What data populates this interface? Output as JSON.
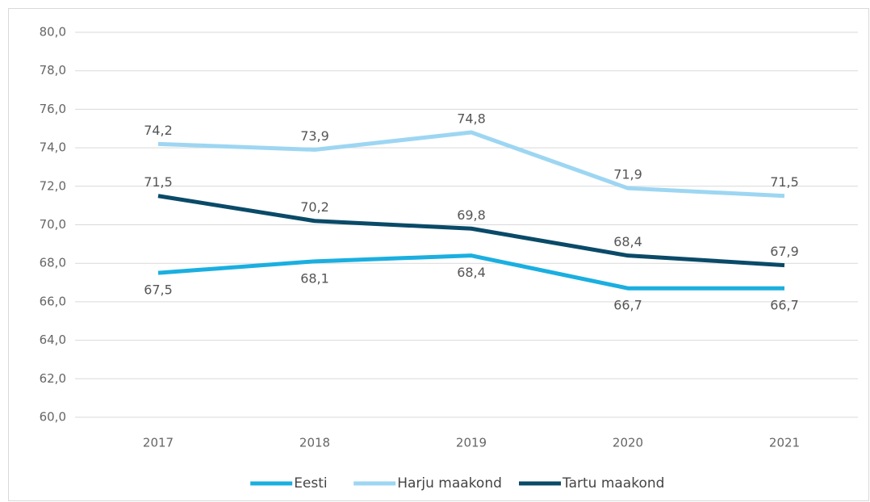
{
  "chart_data": {
    "type": "line",
    "categories": [
      "2017",
      "2018",
      "2019",
      "2020",
      "2021"
    ],
    "series": [
      {
        "name": "Eesti",
        "color": "#1aafe0",
        "values": [
          67.5,
          68.1,
          68.4,
          66.7,
          66.7
        ],
        "value_labels": [
          "67,5",
          "68,1",
          "68,4",
          "66,7",
          "66,7"
        ]
      },
      {
        "name": "Harju maakond",
        "color": "#9dd6f2",
        "values": [
          74.2,
          73.9,
          74.8,
          71.9,
          71.5
        ],
        "value_labels": [
          "74,2",
          "73,9",
          "74,8",
          "71,9",
          "71,5"
        ]
      },
      {
        "name": "Tartu maakond",
        "color": "#0a4a68",
        "values": [
          71.5,
          70.2,
          69.8,
          68.4,
          67.9
        ],
        "value_labels": [
          "71,5",
          "70,2",
          "69,8",
          "68,4",
          "67,9"
        ]
      }
    ],
    "ylim": [
      60,
      80
    ],
    "yticks": [
      {
        "value": 60,
        "label": "60,0"
      },
      {
        "value": 62,
        "label": "62,0"
      },
      {
        "value": 64,
        "label": "64,0"
      },
      {
        "value": 66,
        "label": "66,0"
      },
      {
        "value": 68,
        "label": "68,0"
      },
      {
        "value": 70,
        "label": "70,0"
      },
      {
        "value": 72,
        "label": "72,0"
      },
      {
        "value": 74,
        "label": "74,0"
      },
      {
        "value": 76,
        "label": "76,0"
      },
      {
        "value": 78,
        "label": "78,0"
      },
      {
        "value": 80,
        "label": "80,0"
      }
    ],
    "grid": true,
    "legend": "bottom"
  }
}
